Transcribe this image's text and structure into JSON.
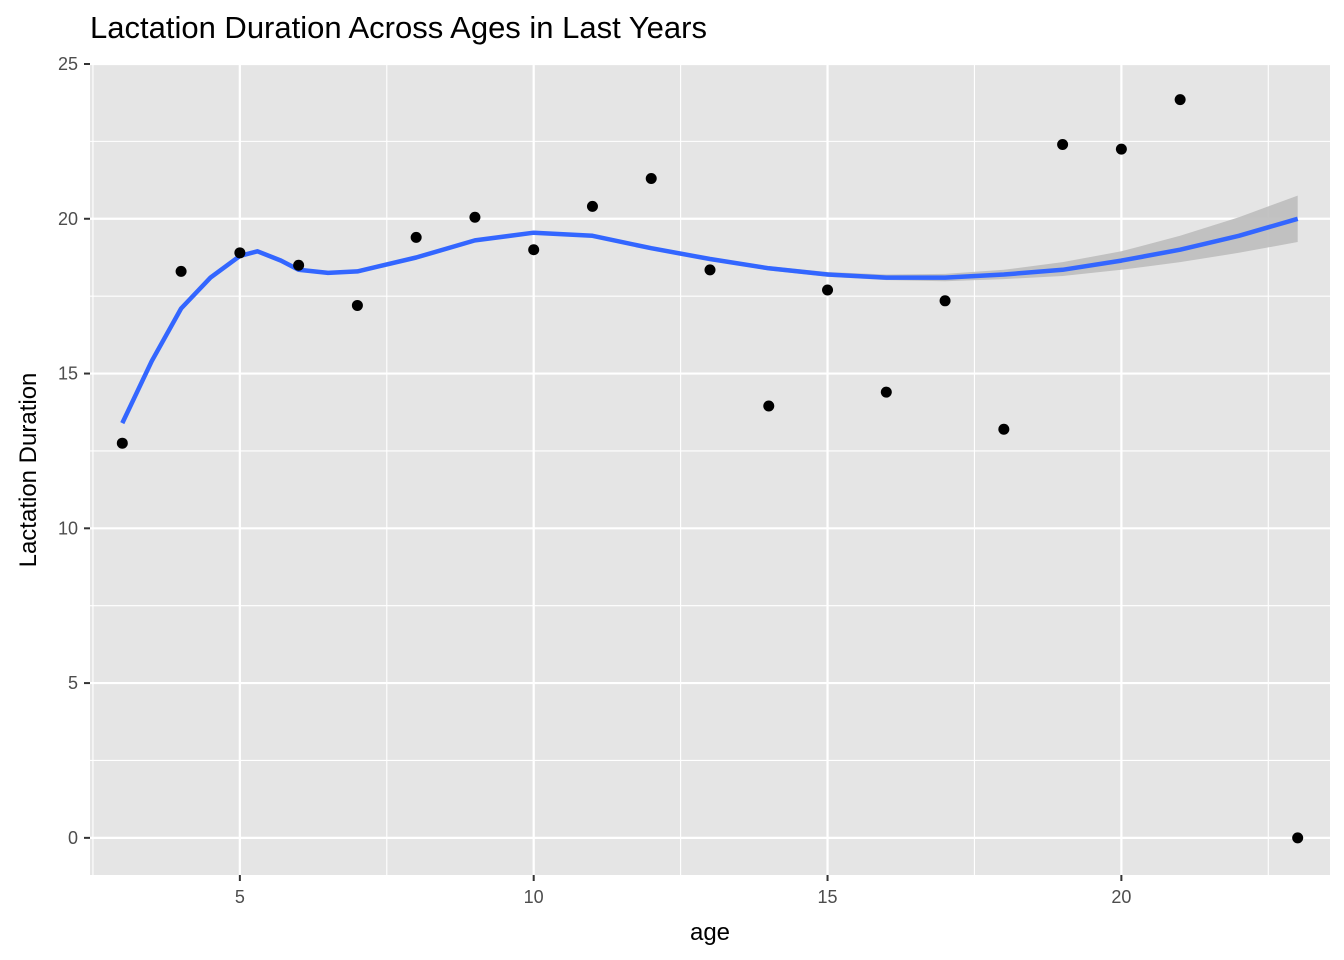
{
  "chart_data": {
    "type": "scatter",
    "title": "Lactation Duration Across Ages in Last Years",
    "xlabel": "age",
    "ylabel": "Lactation Duration",
    "xlim": [
      2.45,
      23.55
    ],
    "ylim": [
      -1.2,
      25
    ],
    "x_ticks": [
      5,
      10,
      15,
      20
    ],
    "y_ticks": [
      0,
      5,
      10,
      15,
      20,
      25
    ],
    "grid": true,
    "colors": {
      "panel_bg": "#e5e5e5",
      "grid": "#ffffff",
      "points": "#000000",
      "smooth_line": "#3366ff",
      "confidence_band": "#bdbdbd"
    },
    "points": [
      {
        "x": 3,
        "y": 12.75
      },
      {
        "x": 4,
        "y": 18.3
      },
      {
        "x": 5,
        "y": 18.9
      },
      {
        "x": 6,
        "y": 18.5
      },
      {
        "x": 7,
        "y": 17.2
      },
      {
        "x": 8,
        "y": 19.4
      },
      {
        "x": 9,
        "y": 20.05
      },
      {
        "x": 10,
        "y": 19.0
      },
      {
        "x": 11,
        "y": 20.4
      },
      {
        "x": 12,
        "y": 21.3
      },
      {
        "x": 13,
        "y": 18.35
      },
      {
        "x": 14,
        "y": 13.95
      },
      {
        "x": 15,
        "y": 17.7
      },
      {
        "x": 16,
        "y": 14.4
      },
      {
        "x": 17,
        "y": 17.35
      },
      {
        "x": 18,
        "y": 13.2
      },
      {
        "x": 19,
        "y": 22.4
      },
      {
        "x": 20,
        "y": 22.25
      },
      {
        "x": 21,
        "y": 23.85
      },
      {
        "x": 23,
        "y": 0.0
      }
    ],
    "smooth": [
      {
        "x": 3,
        "y": 13.4,
        "lo": 13.4,
        "hi": 13.4
      },
      {
        "x": 3.5,
        "y": 15.4,
        "lo": 15.4,
        "hi": 15.4
      },
      {
        "x": 4,
        "y": 17.1,
        "lo": 17.1,
        "hi": 17.1
      },
      {
        "x": 4.5,
        "y": 18.1,
        "lo": 18.1,
        "hi": 18.1
      },
      {
        "x": 5,
        "y": 18.8,
        "lo": 18.8,
        "hi": 18.8
      },
      {
        "x": 5.3,
        "y": 18.95,
        "lo": 18.95,
        "hi": 18.95
      },
      {
        "x": 5.7,
        "y": 18.65,
        "lo": 18.65,
        "hi": 18.65
      },
      {
        "x": 6,
        "y": 18.35,
        "lo": 18.35,
        "hi": 18.35
      },
      {
        "x": 6.5,
        "y": 18.25,
        "lo": 18.25,
        "hi": 18.25
      },
      {
        "x": 7,
        "y": 18.3,
        "lo": 18.3,
        "hi": 18.3
      },
      {
        "x": 8,
        "y": 18.75,
        "lo": 18.75,
        "hi": 18.75
      },
      {
        "x": 9,
        "y": 19.3,
        "lo": 19.3,
        "hi": 19.3
      },
      {
        "x": 10,
        "y": 19.55,
        "lo": 19.55,
        "hi": 19.55
      },
      {
        "x": 11,
        "y": 19.45,
        "lo": 19.45,
        "hi": 19.45
      },
      {
        "x": 12,
        "y": 19.05,
        "lo": 19.05,
        "hi": 19.05
      },
      {
        "x": 13,
        "y": 18.7,
        "lo": 18.65,
        "hi": 18.75
      },
      {
        "x": 14,
        "y": 18.4,
        "lo": 18.33,
        "hi": 18.47
      },
      {
        "x": 15,
        "y": 18.2,
        "lo": 18.13,
        "hi": 18.28
      },
      {
        "x": 16,
        "y": 18.1,
        "lo": 18.02,
        "hi": 18.2
      },
      {
        "x": 17,
        "y": 18.1,
        "lo": 17.98,
        "hi": 18.22
      },
      {
        "x": 18,
        "y": 18.2,
        "lo": 18.05,
        "hi": 18.35
      },
      {
        "x": 19,
        "y": 18.35,
        "lo": 18.15,
        "hi": 18.6
      },
      {
        "x": 20,
        "y": 18.65,
        "lo": 18.35,
        "hi": 18.95
      },
      {
        "x": 21,
        "y": 19.0,
        "lo": 18.6,
        "hi": 19.45
      },
      {
        "x": 22,
        "y": 19.45,
        "lo": 18.9,
        "hi": 20.05
      },
      {
        "x": 23,
        "y": 20.0,
        "lo": 19.25,
        "hi": 20.75
      }
    ]
  }
}
